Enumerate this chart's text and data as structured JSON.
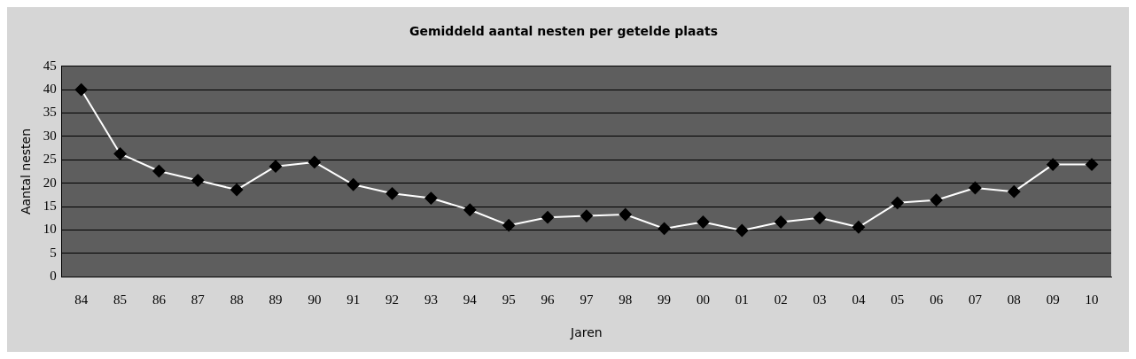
{
  "chart_data": {
    "type": "line",
    "title": "Gemiddeld aantal nesten per getelde plaats",
    "xlabel": "Jaren",
    "ylabel": "Aantal nesten",
    "categories": [
      "84",
      "85",
      "86",
      "87",
      "88",
      "89",
      "90",
      "91",
      "92",
      "93",
      "94",
      "95",
      "96",
      "97",
      "98",
      "99",
      "00",
      "01",
      "02",
      "03",
      "04",
      "05",
      "06",
      "07",
      "08",
      "09",
      "10"
    ],
    "series": [
      {
        "color": "#ffffff",
        "values": [
          40,
          26.3,
          22.6,
          20.6,
          18.6,
          23.6,
          24.5,
          19.7,
          17.8,
          16.8,
          14.3,
          11,
          12.7,
          13,
          13.3,
          10.3,
          11.7,
          9.9,
          11.7,
          12.6,
          10.6,
          15.8,
          16.4,
          19,
          18.2,
          24,
          24
        ]
      }
    ],
    "ylim": [
      0,
      45
    ],
    "yticks": [
      0,
      5,
      10,
      15,
      20,
      25,
      30,
      35,
      40,
      45
    ],
    "grid": "y",
    "legend": false,
    "marker": "diamond",
    "line_style": "solid"
  }
}
